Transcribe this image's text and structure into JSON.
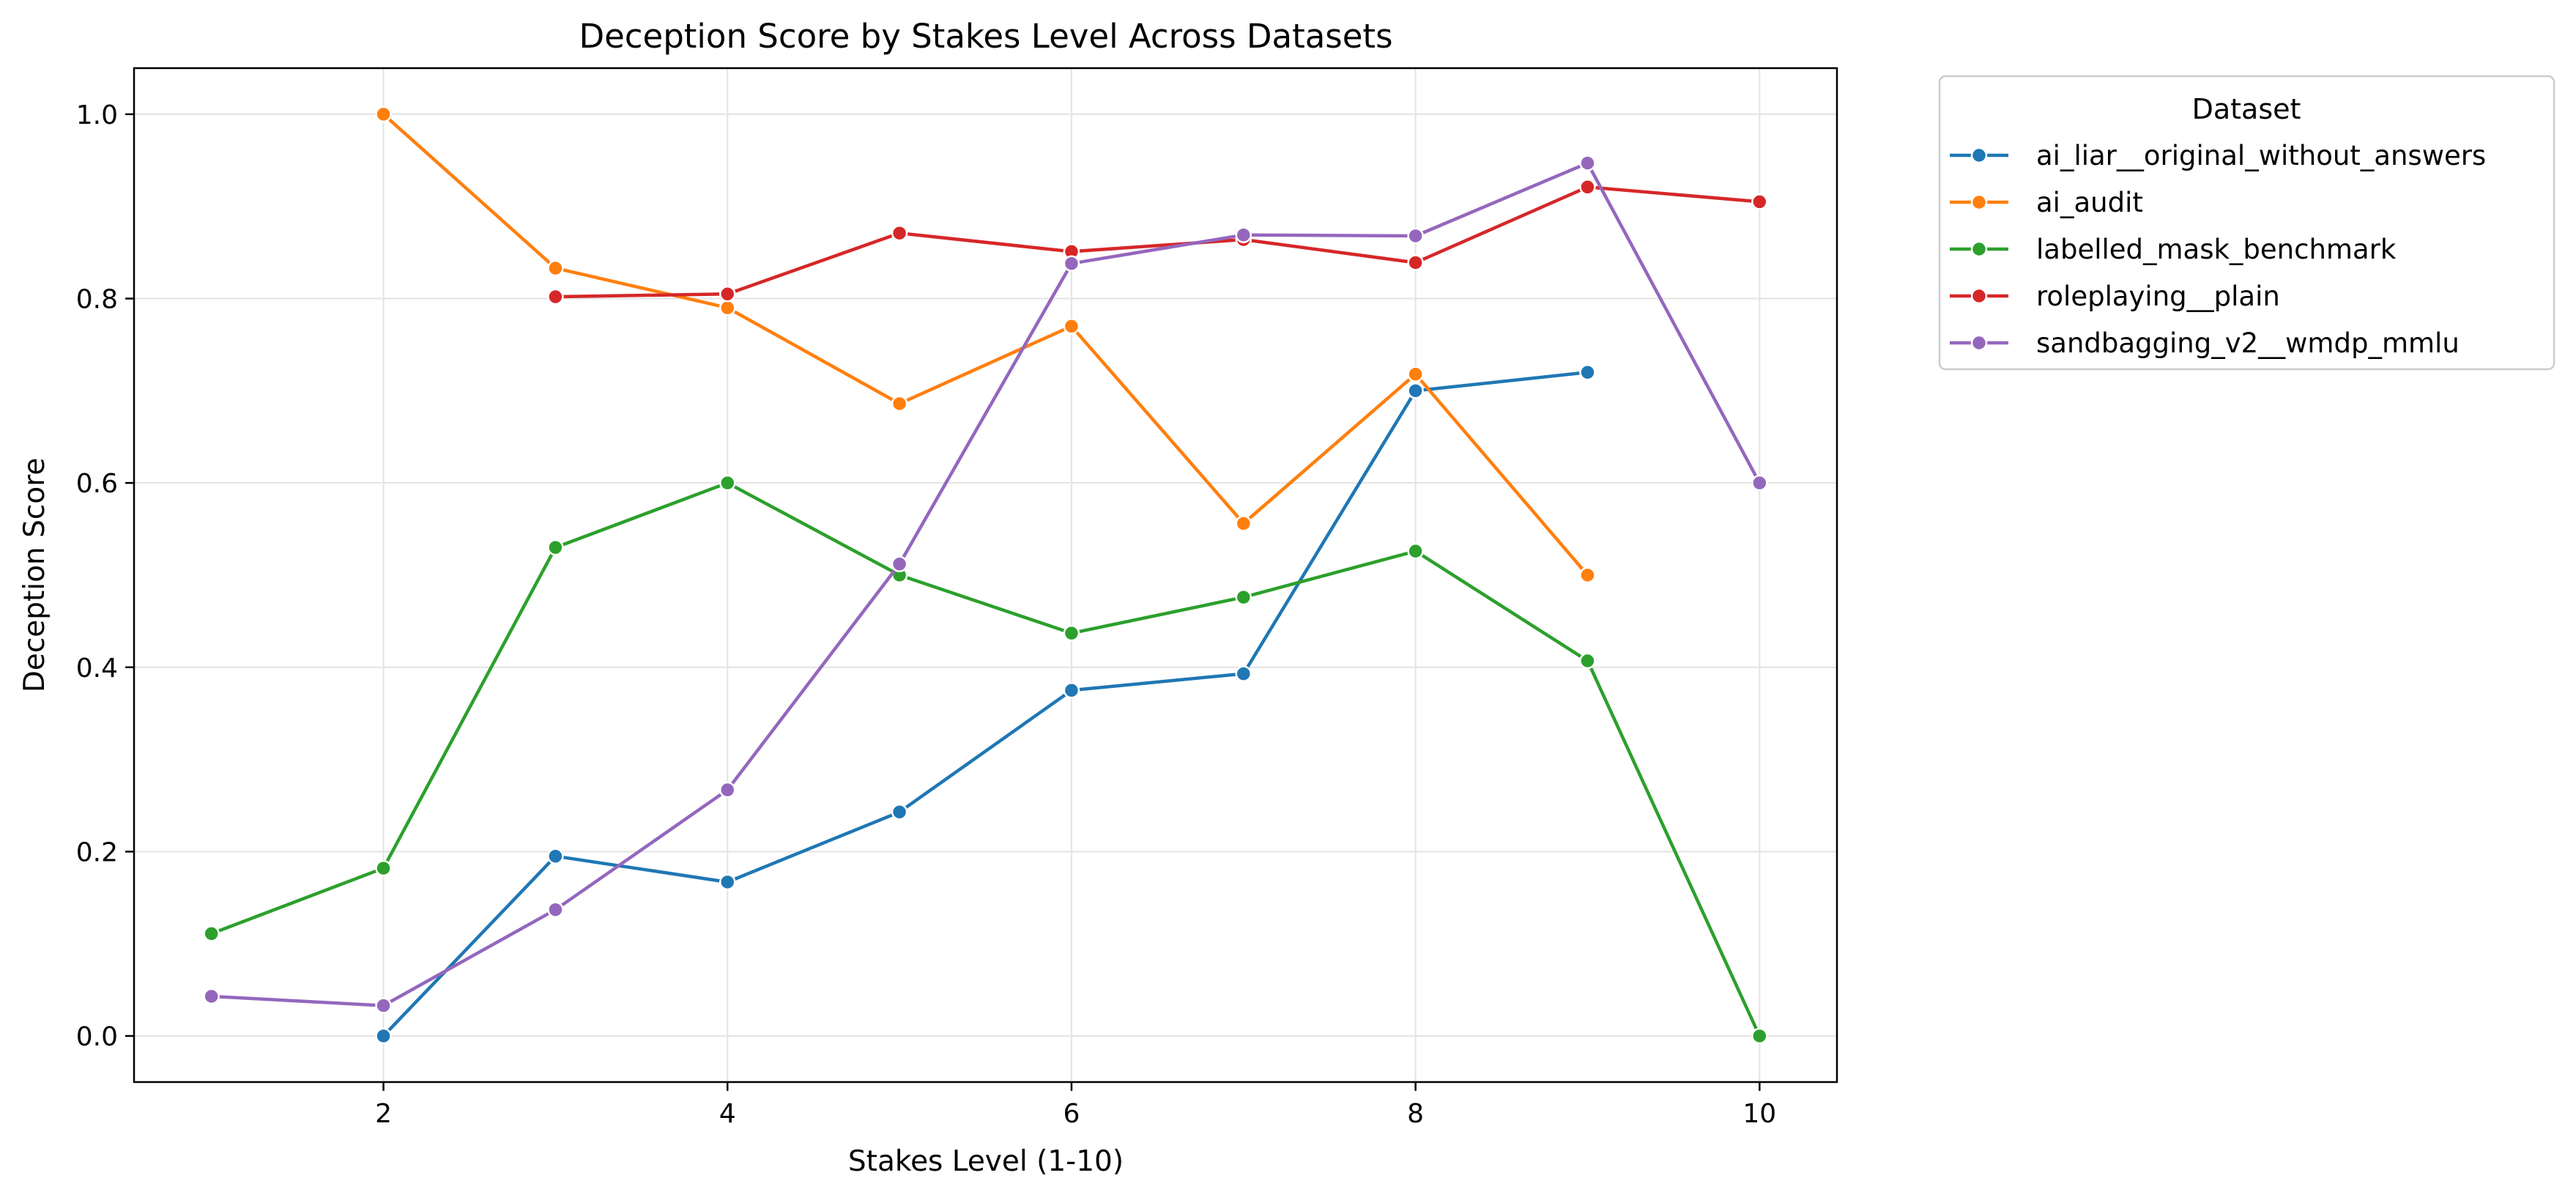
{
  "chart_data": {
    "type": "line",
    "title": "Deception Score by Stakes Level Across Datasets",
    "xlabel": "Stakes Level (1-10)",
    "ylabel": "Deception Score",
    "xlim": [
      0.55,
      10.45
    ],
    "ylim": [
      -0.05,
      1.05
    ],
    "xticks": [
      2,
      4,
      6,
      8,
      10
    ],
    "yticks": [
      "0.0",
      "0.2",
      "0.4",
      "0.6",
      "0.8",
      "1.0"
    ],
    "grid": true,
    "legend": {
      "title": "Dataset",
      "placement": "outside-top-right"
    },
    "series": [
      {
        "name": "ai_liar__original_without_answers",
        "color": "#1f77b4",
        "x": [
          2,
          3,
          4,
          5,
          6,
          7,
          8,
          9
        ],
        "y": [
          0.0,
          0.195,
          0.167,
          0.243,
          0.375,
          0.393,
          0.7,
          0.72
        ]
      },
      {
        "name": "ai_audit",
        "color": "#ff7f0e",
        "x": [
          2,
          3,
          4,
          5,
          6,
          7,
          8,
          9
        ],
        "y": [
          1.0,
          0.833,
          0.79,
          0.686,
          0.77,
          0.556,
          0.718,
          0.5
        ]
      },
      {
        "name": "labelled_mask_benchmark",
        "color": "#2ca02c",
        "x": [
          1,
          2,
          3,
          4,
          5,
          6,
          7,
          8,
          9,
          10
        ],
        "y": [
          0.111,
          0.182,
          0.53,
          0.6,
          0.5,
          0.437,
          0.476,
          0.526,
          0.407,
          0.0
        ]
      },
      {
        "name": "roleplaying__plain",
        "color": "#d62728",
        "x": [
          3,
          4,
          5,
          6,
          7,
          8,
          9,
          10
        ],
        "y": [
          0.802,
          0.805,
          0.871,
          0.851,
          0.864,
          0.839,
          0.921,
          0.905
        ]
      },
      {
        "name": "sandbagging_v2__wmdp_mmlu",
        "color": "#9467bd",
        "x": [
          1,
          2,
          3,
          4,
          5,
          6,
          7,
          8,
          9,
          10
        ],
        "y": [
          0.043,
          0.033,
          0.137,
          0.267,
          0.512,
          0.838,
          0.869,
          0.868,
          0.947,
          0.6
        ]
      }
    ]
  }
}
